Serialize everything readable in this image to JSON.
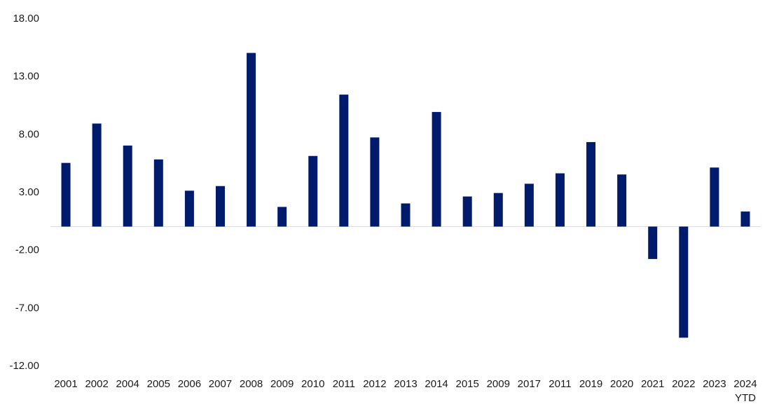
{
  "chart_data": {
    "type": "bar",
    "title": "",
    "xlabel": "",
    "ylabel": "",
    "ylim": [
      -12,
      18
    ],
    "yticks": [
      "18.00",
      "13.00",
      "8.00",
      "3.00",
      "-2.00",
      "-7.00",
      "-12.00"
    ],
    "ytick_values": [
      18,
      13,
      8,
      3,
      -2,
      -7,
      -12
    ],
    "grid": false,
    "legend": "none",
    "bar_color": "#001b6b",
    "categories": [
      [
        "2001"
      ],
      [
        "2002"
      ],
      [
        "2004"
      ],
      [
        "2005"
      ],
      [
        "2006"
      ],
      [
        "2007"
      ],
      [
        "2008"
      ],
      [
        "2009"
      ],
      [
        "2010"
      ],
      [
        "2011"
      ],
      [
        "2012"
      ],
      [
        "2013"
      ],
      [
        "2014"
      ],
      [
        "2015"
      ],
      [
        "2009"
      ],
      [
        "2017"
      ],
      [
        "2011"
      ],
      [
        "2019"
      ],
      [
        "2020"
      ],
      [
        "2021"
      ],
      [
        "2022"
      ],
      [
        "2023"
      ],
      [
        "2024",
        "YTD"
      ]
    ],
    "values": [
      5.5,
      8.9,
      7.0,
      5.8,
      3.1,
      3.5,
      15.0,
      1.7,
      6.1,
      11.4,
      7.7,
      2.0,
      9.9,
      2.6,
      2.9,
      3.7,
      4.6,
      7.3,
      4.5,
      -2.8,
      -9.6,
      5.1,
      1.3
    ]
  }
}
